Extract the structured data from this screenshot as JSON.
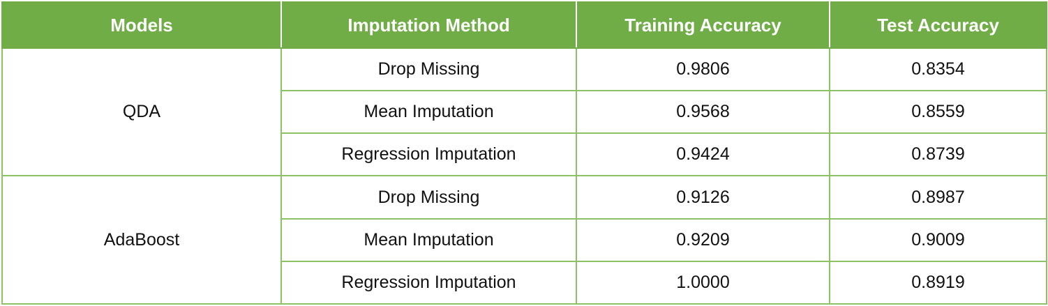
{
  "table": {
    "headers": [
      "Models",
      "Imputation Method",
      "Training Accuracy",
      "Test Accuracy"
    ],
    "groups": [
      {
        "model": "QDA",
        "rows": [
          {
            "method": "Drop Missing",
            "train": "0.9806",
            "test": "0.8354"
          },
          {
            "method": "Mean Imputation",
            "train": "0.9568",
            "test": "0.8559"
          },
          {
            "method": "Regression Imputation",
            "train": "0.9424",
            "test": "0.8739"
          }
        ]
      },
      {
        "model": "AdaBoost",
        "rows": [
          {
            "method": "Drop Missing",
            "train": "0.9126",
            "test": "0.8987"
          },
          {
            "method": "Mean Imputation",
            "train": "0.9209",
            "test": "0.9009"
          },
          {
            "method": "Regression Imputation",
            "train": "1.0000",
            "test": "0.8919"
          }
        ]
      }
    ],
    "colors": {
      "header_bg": "#70ad47",
      "header_text": "#ffffff",
      "border": "#8cc265"
    }
  }
}
